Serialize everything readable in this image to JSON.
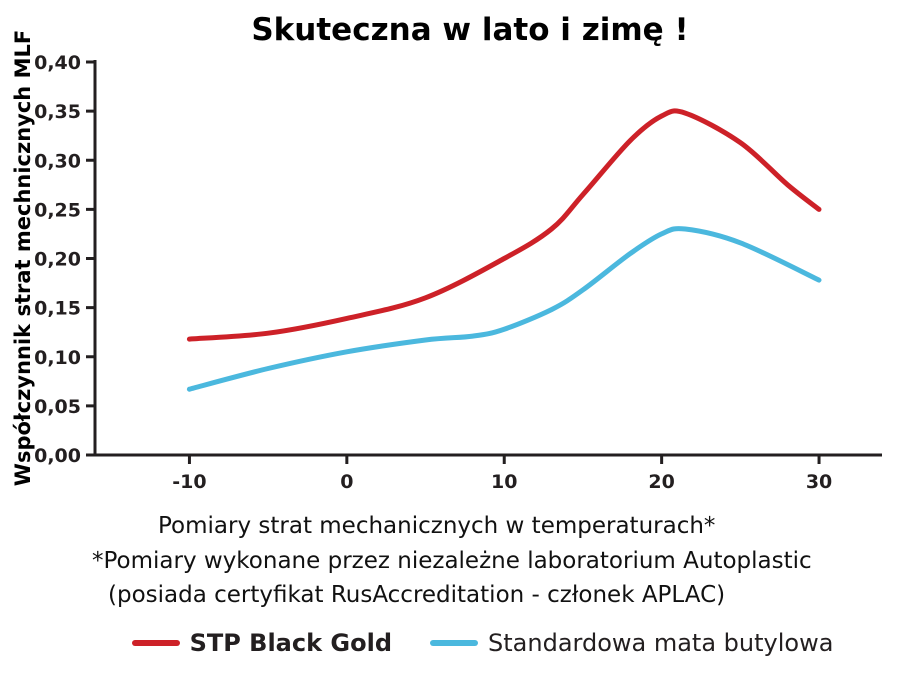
{
  "chart_data": {
    "type": "line",
    "title": "Skuteczna w lato i zimę !",
    "xlabel": "",
    "ylabel": "Współczynnik strat mechnicznych MLF",
    "xlim": [
      -16,
      34
    ],
    "ylim": [
      0,
      0.4
    ],
    "grid": false,
    "legend_position": "bottom",
    "x_ticks": [
      {
        "value": -10,
        "label": "-10"
      },
      {
        "value": 0,
        "label": "0"
      },
      {
        "value": 10,
        "label": "10"
      },
      {
        "value": 20,
        "label": "20"
      },
      {
        "value": 30,
        "label": "30"
      }
    ],
    "y_ticks": [
      {
        "value": 0.0,
        "label": "0,00"
      },
      {
        "value": 0.05,
        "label": "0,05"
      },
      {
        "value": 0.1,
        "label": "0,10"
      },
      {
        "value": 0.15,
        "label": "0,15"
      },
      {
        "value": 0.2,
        "label": "0,20"
      },
      {
        "value": 0.25,
        "label": "0,25"
      },
      {
        "value": 0.3,
        "label": "0,30"
      },
      {
        "value": 0.35,
        "label": "0,35"
      },
      {
        "value": 0.4,
        "label": "0,40"
      }
    ],
    "series": [
      {
        "name": "STP Black Gold",
        "color": "#cd2128",
        "x": [
          -10,
          -5,
          0,
          5,
          10,
          13,
          15,
          18,
          20,
          21.5,
          25,
          28,
          30
        ],
        "values": [
          0.118,
          0.124,
          0.139,
          0.16,
          0.2,
          0.23,
          0.265,
          0.32,
          0.345,
          0.348,
          0.318,
          0.275,
          0.25
        ]
      },
      {
        "name": "Standardowa mata butylowa",
        "color": "#4bb8de",
        "x": [
          -10,
          -5,
          0,
          5,
          8,
          10,
          13,
          15,
          18,
          20,
          21.5,
          25,
          30
        ],
        "values": [
          0.067,
          0.088,
          0.105,
          0.117,
          0.121,
          0.128,
          0.148,
          0.168,
          0.205,
          0.225,
          0.23,
          0.216,
          0.178
        ]
      }
    ]
  },
  "captions": {
    "line1": "Pomiary strat mechanicznych w temperaturach*",
    "line2": "*Pomiary wykonane przez niezależne laboratorium Autoplastic",
    "line3": "(posiada certyfikat RusAccreditation - członek APLAC)"
  }
}
